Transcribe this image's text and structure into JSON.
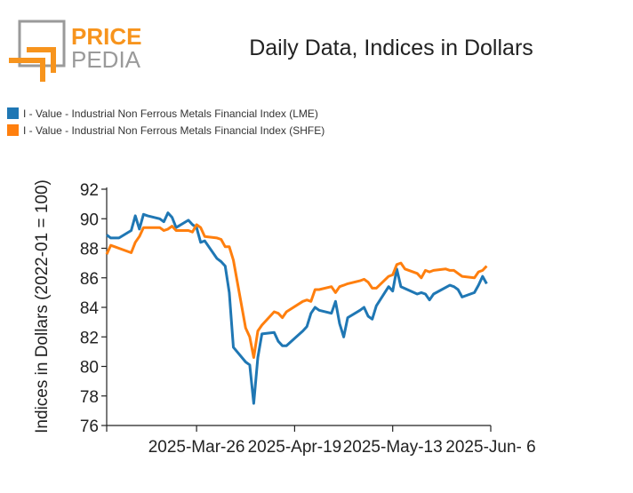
{
  "logo": {
    "word_top": "PRICE",
    "word_bottom": "PEDIA",
    "accent_color": "#f7941d",
    "grey_color": "#9a9a9a"
  },
  "title": "Daily Data, Indices in Dollars",
  "legend": [
    {
      "label": "I - Value - Industrial Non Ferrous Metals Financial Index (LME)",
      "color": "#1f77b4"
    },
    {
      "label": "I - Value - Industrial Non Ferrous Metals Financial Index (SHFE)",
      "color": "#ff7f0e"
    }
  ],
  "chart_data": {
    "type": "line",
    "title": "Daily Data, Indices in Dollars",
    "ylabel": "Indices in Dollars (2022-01 = 100)",
    "xlabel": "",
    "ylim": [
      76,
      92
    ],
    "yticks": [
      76,
      78,
      80,
      82,
      84,
      86,
      88,
      90,
      92
    ],
    "xlim": [
      "2025-03-04",
      "2025-06-06"
    ],
    "xticks": [
      {
        "date": "2025-03-04",
        "label": ""
      },
      {
        "date": "2025-03-26",
        "label": "2025-Mar-26"
      },
      {
        "date": "2025-04-19",
        "label": "2025-Apr-19"
      },
      {
        "date": "2025-05-13",
        "label": "2025-May-13"
      },
      {
        "date": "2025-06-06",
        "label": "2025-Jun- 6"
      }
    ],
    "grid": false,
    "legend_position": "top-left",
    "series": [
      {
        "name": "I - Value - Industrial Non Ferrous Metals Financial Index (LME)",
        "color": "#1f77b4",
        "points": [
          [
            "2025-03-04",
            88.9
          ],
          [
            "2025-03-05",
            88.7
          ],
          [
            "2025-03-06",
            88.7
          ],
          [
            "2025-03-07",
            88.7
          ],
          [
            "2025-03-10",
            89.2
          ],
          [
            "2025-03-11",
            90.2
          ],
          [
            "2025-03-12",
            89.3
          ],
          [
            "2025-03-13",
            90.3
          ],
          [
            "2025-03-14",
            90.2
          ],
          [
            "2025-03-17",
            90.0
          ],
          [
            "2025-03-18",
            89.8
          ],
          [
            "2025-03-19",
            90.4
          ],
          [
            "2025-03-20",
            90.1
          ],
          [
            "2025-03-21",
            89.4
          ],
          [
            "2025-03-24",
            89.9
          ],
          [
            "2025-03-25",
            89.6
          ],
          [
            "2025-03-26",
            89.4
          ],
          [
            "2025-03-27",
            88.4
          ],
          [
            "2025-03-28",
            88.5
          ],
          [
            "2025-03-31",
            87.3
          ],
          [
            "2025-04-01",
            87.1
          ],
          [
            "2025-04-02",
            86.8
          ],
          [
            "2025-04-03",
            85.0
          ],
          [
            "2025-04-04",
            81.3
          ],
          [
            "2025-04-07",
            80.3
          ],
          [
            "2025-04-08",
            80.1
          ],
          [
            "2025-04-09",
            77.5
          ],
          [
            "2025-04-10",
            80.6
          ],
          [
            "2025-04-11",
            82.2
          ],
          [
            "2025-04-14",
            82.3
          ],
          [
            "2025-04-15",
            81.7
          ],
          [
            "2025-04-16",
            81.4
          ],
          [
            "2025-04-17",
            81.4
          ],
          [
            "2025-04-21",
            82.4
          ],
          [
            "2025-04-22",
            82.7
          ],
          [
            "2025-04-23",
            83.6
          ],
          [
            "2025-04-24",
            84.0
          ],
          [
            "2025-04-25",
            83.8
          ],
          [
            "2025-04-28",
            83.6
          ],
          [
            "2025-04-29",
            84.4
          ],
          [
            "2025-04-30",
            82.9
          ],
          [
            "2025-05-01",
            82.0
          ],
          [
            "2025-05-02",
            83.3
          ],
          [
            "2025-05-05",
            83.8
          ],
          [
            "2025-05-06",
            84.0
          ],
          [
            "2025-05-07",
            83.4
          ],
          [
            "2025-05-08",
            83.2
          ],
          [
            "2025-05-09",
            84.1
          ],
          [
            "2025-05-12",
            85.4
          ],
          [
            "2025-05-13",
            85.1
          ],
          [
            "2025-05-14",
            86.6
          ],
          [
            "2025-05-15",
            85.4
          ],
          [
            "2025-05-19",
            84.9
          ],
          [
            "2025-05-20",
            85.0
          ],
          [
            "2025-05-21",
            84.9
          ],
          [
            "2025-05-22",
            84.5
          ],
          [
            "2025-05-23",
            84.9
          ],
          [
            "2025-05-27",
            85.5
          ],
          [
            "2025-05-28",
            85.4
          ],
          [
            "2025-05-29",
            85.2
          ],
          [
            "2025-05-30",
            84.7
          ],
          [
            "2025-06-02",
            85.0
          ],
          [
            "2025-06-03",
            85.5
          ],
          [
            "2025-06-04",
            86.1
          ],
          [
            "2025-06-05",
            85.6
          ]
        ]
      },
      {
        "name": "I - Value - Industrial Non Ferrous Metals Financial Index (SHFE)",
        "color": "#ff7f0e",
        "points": [
          [
            "2025-03-04",
            87.6
          ],
          [
            "2025-03-05",
            88.2
          ],
          [
            "2025-03-06",
            88.1
          ],
          [
            "2025-03-07",
            88.0
          ],
          [
            "2025-03-10",
            87.7
          ],
          [
            "2025-03-11",
            88.4
          ],
          [
            "2025-03-12",
            88.8
          ],
          [
            "2025-03-13",
            89.4
          ],
          [
            "2025-03-14",
            89.4
          ],
          [
            "2025-03-17",
            89.4
          ],
          [
            "2025-03-18",
            89.2
          ],
          [
            "2025-03-19",
            89.3
          ],
          [
            "2025-03-20",
            89.5
          ],
          [
            "2025-03-21",
            89.2
          ],
          [
            "2025-03-24",
            89.2
          ],
          [
            "2025-03-25",
            89.1
          ],
          [
            "2025-03-26",
            89.6
          ],
          [
            "2025-03-27",
            89.4
          ],
          [
            "2025-03-28",
            88.8
          ],
          [
            "2025-03-31",
            88.7
          ],
          [
            "2025-04-01",
            88.6
          ],
          [
            "2025-04-02",
            88.1
          ],
          [
            "2025-04-03",
            88.1
          ],
          [
            "2025-04-04",
            87.2
          ],
          [
            "2025-04-07",
            82.6
          ],
          [
            "2025-04-08",
            82.0
          ],
          [
            "2025-04-09",
            80.6
          ],
          [
            "2025-04-10",
            82.4
          ],
          [
            "2025-04-11",
            82.8
          ],
          [
            "2025-04-14",
            83.7
          ],
          [
            "2025-04-15",
            83.6
          ],
          [
            "2025-04-16",
            83.3
          ],
          [
            "2025-04-17",
            83.7
          ],
          [
            "2025-04-21",
            84.4
          ],
          [
            "2025-04-22",
            84.5
          ],
          [
            "2025-04-23",
            84.4
          ],
          [
            "2025-04-24",
            85.2
          ],
          [
            "2025-04-25",
            85.2
          ],
          [
            "2025-04-28",
            85.4
          ],
          [
            "2025-04-29",
            85.0
          ],
          [
            "2025-04-30",
            85.4
          ],
          [
            "2025-05-01",
            85.5
          ],
          [
            "2025-05-02",
            85.6
          ],
          [
            "2025-05-05",
            85.8
          ],
          [
            "2025-05-06",
            85.9
          ],
          [
            "2025-05-07",
            85.7
          ],
          [
            "2025-05-08",
            85.3
          ],
          [
            "2025-05-09",
            85.3
          ],
          [
            "2025-05-12",
            86.1
          ],
          [
            "2025-05-13",
            86.2
          ],
          [
            "2025-05-14",
            86.9
          ],
          [
            "2025-05-15",
            87.0
          ],
          [
            "2025-05-16",
            86.6
          ],
          [
            "2025-05-19",
            86.3
          ],
          [
            "2025-05-20",
            86.0
          ],
          [
            "2025-05-21",
            86.5
          ],
          [
            "2025-05-22",
            86.4
          ],
          [
            "2025-05-23",
            86.5
          ],
          [
            "2025-05-26",
            86.6
          ],
          [
            "2025-05-27",
            86.5
          ],
          [
            "2025-05-28",
            86.5
          ],
          [
            "2025-05-29",
            86.3
          ],
          [
            "2025-05-30",
            86.1
          ],
          [
            "2025-06-02",
            86.0
          ],
          [
            "2025-06-03",
            86.4
          ],
          [
            "2025-06-04",
            86.5
          ],
          [
            "2025-06-05",
            86.8
          ]
        ]
      }
    ]
  }
}
